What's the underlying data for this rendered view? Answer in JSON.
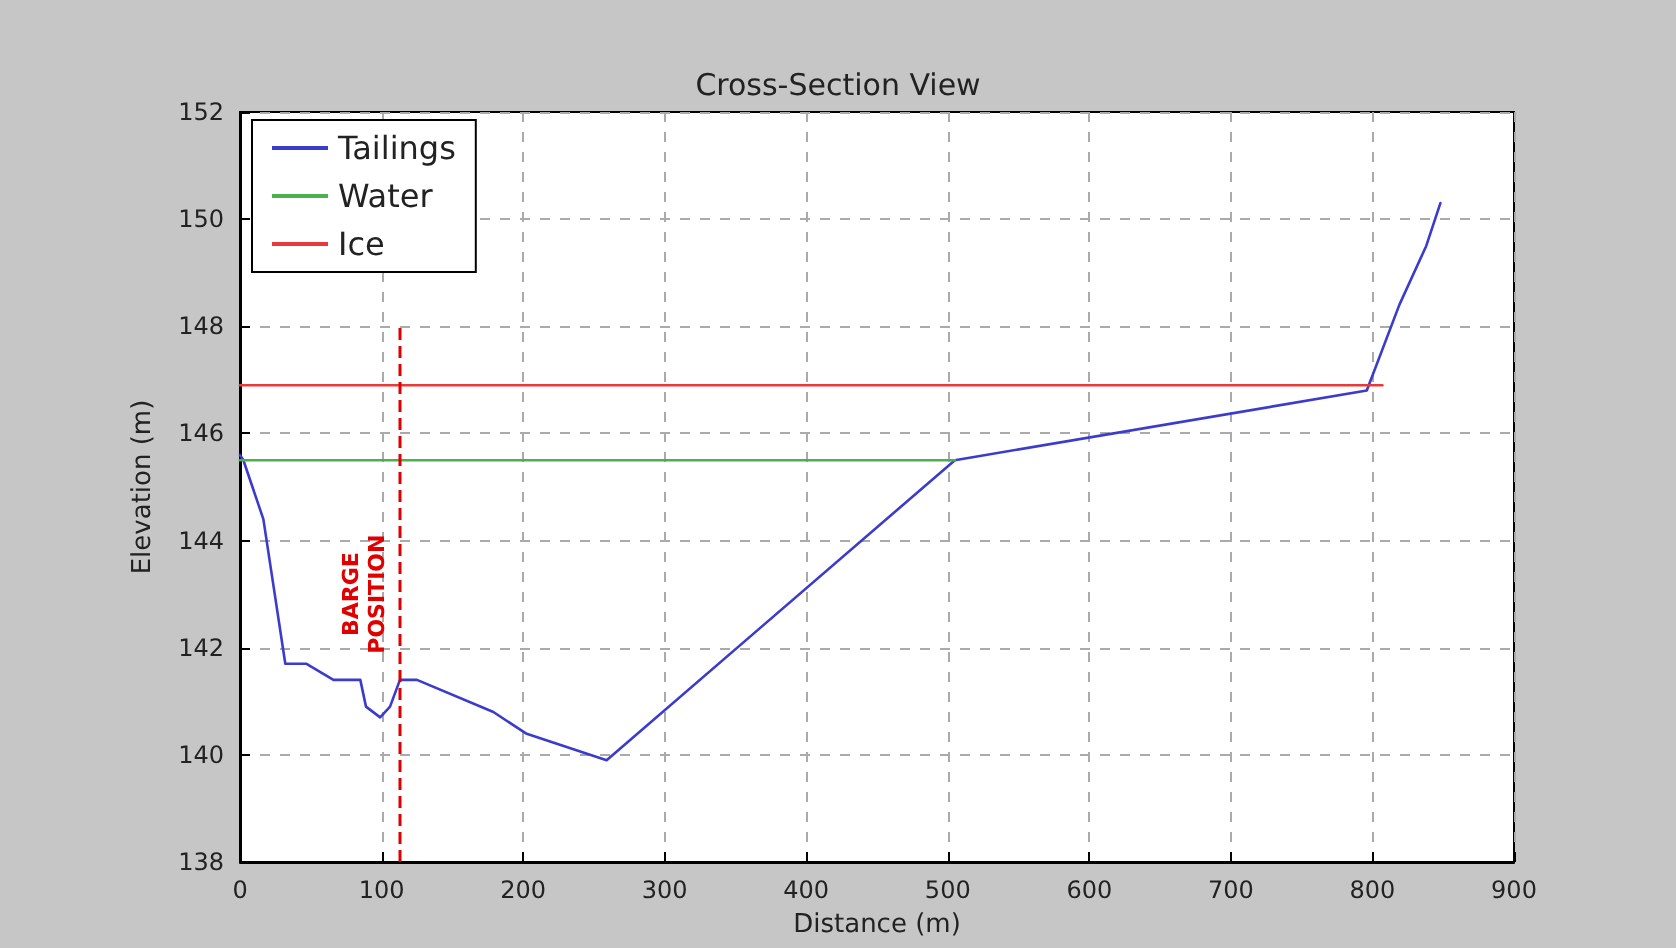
{
  "chart_data": {
    "type": "line",
    "title": "Cross-Section View",
    "xlabel": "Distance (m)",
    "ylabel": "Elevation (m)",
    "xlim": [
      0,
      900
    ],
    "xticks": [
      0,
      100,
      200,
      300,
      400,
      500,
      600,
      700,
      800,
      900
    ],
    "ylim": [
      138,
      152
    ],
    "yticks": [
      138,
      140,
      142,
      144,
      146,
      148,
      150,
      152
    ],
    "grid": true,
    "legend": "top left",
    "line_style": "solid",
    "series": [
      {
        "name": "Tailings",
        "color": "#3b3bcc",
        "x": [
          0,
          2.4,
          16.5,
          32,
          37.6,
          47,
          66,
          85,
          89,
          99,
          106,
          113,
          125,
          179,
          202,
          259,
          505,
          796,
          819,
          838,
          848
        ],
        "values": [
          145.6,
          145.5,
          144.4,
          141.7,
          141.7,
          141.7,
          141.4,
          141.4,
          140.9,
          140.7,
          140.9,
          141.4,
          141.4,
          140.8,
          140.4,
          139.9,
          145.5,
          146.8,
          148.4,
          149.5,
          150.3
        ]
      },
      {
        "name": "Water",
        "color": "#4caf50",
        "x": [
          0,
          505
        ],
        "values": [
          145.5,
          145.5
        ]
      },
      {
        "name": "Ice",
        "color": "#e83a3a",
        "x": [
          0,
          807
        ],
        "values": [
          146.9,
          146.9
        ]
      }
    ],
    "ref_lines": [
      {
        "axis": "x",
        "value": 113,
        "label": "BARGE POSITION",
        "color": "#e00000",
        "line_style": "dashed"
      }
    ]
  }
}
